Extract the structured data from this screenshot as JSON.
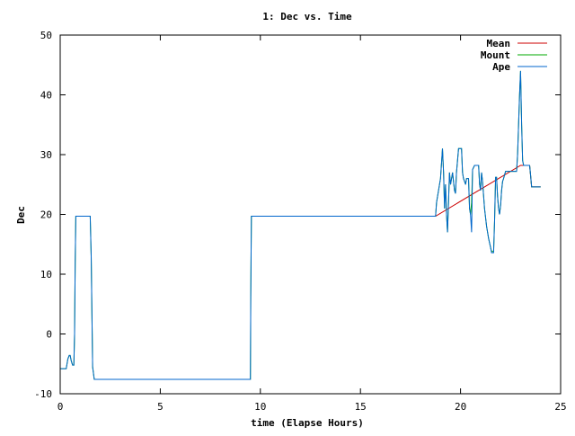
{
  "chart_data": {
    "type": "line",
    "title": "1: Dec vs. Time",
    "xlabel": "time (Elapse Hours)",
    "ylabel": "Dec",
    "xlim": [
      0,
      25
    ],
    "ylim": [
      -10,
      50
    ],
    "xticks": [
      0,
      5,
      10,
      15,
      20,
      25
    ],
    "yticks": [
      -10,
      0,
      10,
      20,
      30,
      40,
      50
    ],
    "grid": false,
    "legend_position": "top-right",
    "series": [
      {
        "name": "Mean",
        "color": "#cc0000",
        "points": [
          [
            10.4,
            19.7
          ],
          [
            18.75,
            19.7
          ],
          [
            23.0,
            28.2
          ],
          [
            23.45,
            28.2
          ],
          [
            23.55,
            24.6
          ],
          [
            24.0,
            24.6
          ]
        ]
      },
      {
        "name": "Mount",
        "color": "#00aa00",
        "points": [
          [
            0.0,
            -5.8
          ],
          [
            0.3,
            -5.8
          ],
          [
            0.38,
            -4.2
          ],
          [
            0.45,
            -3.6
          ],
          [
            0.5,
            -3.6
          ],
          [
            0.55,
            -4.5
          ],
          [
            0.62,
            -5.2
          ],
          [
            0.68,
            -5.2
          ],
          [
            0.72,
            0.0
          ],
          [
            0.75,
            12.0
          ],
          [
            0.78,
            19.7
          ],
          [
            1.5,
            19.7
          ],
          [
            1.55,
            13.0
          ],
          [
            1.62,
            -5.5
          ],
          [
            1.7,
            -7.6
          ],
          [
            9.5,
            -7.6
          ],
          [
            9.52,
            6.0
          ],
          [
            9.55,
            19.7
          ],
          [
            18.75,
            19.7
          ],
          [
            18.8,
            22.0
          ],
          [
            18.9,
            24.0
          ],
          [
            19.0,
            26.0
          ],
          [
            19.1,
            31.0
          ],
          [
            19.15,
            27.0
          ],
          [
            19.2,
            21.0
          ],
          [
            19.25,
            25.0
          ],
          [
            19.3,
            20.0
          ],
          [
            19.35,
            17.0
          ],
          [
            19.4,
            22.0
          ],
          [
            19.45,
            27.0
          ],
          [
            19.5,
            25.0
          ],
          [
            19.6,
            27.0
          ],
          [
            19.7,
            24.0
          ],
          [
            19.75,
            23.5
          ],
          [
            19.8,
            27.0
          ],
          [
            19.9,
            31.0
          ],
          [
            20.05,
            31.0
          ],
          [
            20.1,
            27.0
          ],
          [
            20.15,
            26.0
          ],
          [
            20.2,
            25.5
          ],
          [
            20.25,
            25.0
          ],
          [
            20.3,
            26.0
          ],
          [
            20.4,
            26.0
          ],
          [
            20.45,
            21.0
          ],
          [
            20.5,
            20.0
          ],
          [
            20.55,
            22.0
          ],
          [
            20.6,
            27.5
          ],
          [
            20.7,
            28.2
          ],
          [
            20.9,
            28.2
          ],
          [
            20.95,
            25.0
          ],
          [
            21.0,
            24.0
          ],
          [
            21.05,
            27.0
          ],
          [
            21.1,
            25.5
          ],
          [
            21.2,
            21.0
          ],
          [
            21.3,
            18.0
          ],
          [
            21.4,
            16.0
          ],
          [
            21.5,
            14.5
          ],
          [
            21.55,
            13.8
          ],
          [
            21.65,
            13.8
          ],
          [
            21.7,
            19.0
          ],
          [
            21.75,
            26.2
          ],
          [
            21.8,
            26.2
          ],
          [
            21.85,
            23.0
          ],
          [
            21.9,
            21.0
          ],
          [
            21.95,
            20.0
          ],
          [
            22.0,
            21.5
          ],
          [
            22.05,
            24.0
          ],
          [
            22.1,
            25.5
          ],
          [
            22.15,
            26.0
          ],
          [
            22.25,
            27.2
          ],
          [
            22.8,
            27.2
          ],
          [
            22.85,
            30.0
          ],
          [
            22.9,
            35.0
          ],
          [
            22.95,
            40.0
          ],
          [
            23.0,
            44.0
          ],
          [
            23.05,
            35.0
          ],
          [
            23.1,
            29.0
          ],
          [
            23.15,
            28.2
          ],
          [
            23.45,
            28.2
          ],
          [
            23.5,
            26.5
          ],
          [
            23.55,
            24.6
          ],
          [
            24.0,
            24.6
          ]
        ]
      },
      {
        "name": "Ape",
        "color": "#0066cc",
        "points": [
          [
            0.0,
            -5.8
          ],
          [
            0.3,
            -5.8
          ],
          [
            0.38,
            -4.2
          ],
          [
            0.45,
            -3.6
          ],
          [
            0.5,
            -3.6
          ],
          [
            0.55,
            -4.5
          ],
          [
            0.62,
            -5.2
          ],
          [
            0.68,
            -5.2
          ],
          [
            0.72,
            0.0
          ],
          [
            0.75,
            12.0
          ],
          [
            0.78,
            19.7
          ],
          [
            1.5,
            19.7
          ],
          [
            1.55,
            13.0
          ],
          [
            1.62,
            -5.5
          ],
          [
            1.7,
            -7.6
          ],
          [
            9.5,
            -7.6
          ],
          [
            9.52,
            6.0
          ],
          [
            9.55,
            19.7
          ],
          [
            18.75,
            19.7
          ],
          [
            18.8,
            22.0
          ],
          [
            18.9,
            24.0
          ],
          [
            19.0,
            26.0
          ],
          [
            19.1,
            31.0
          ],
          [
            19.15,
            27.0
          ],
          [
            19.2,
            21.0
          ],
          [
            19.25,
            25.0
          ],
          [
            19.3,
            20.0
          ],
          [
            19.35,
            17.0
          ],
          [
            19.4,
            22.0
          ],
          [
            19.45,
            27.0
          ],
          [
            19.5,
            25.0
          ],
          [
            19.6,
            27.0
          ],
          [
            19.7,
            24.0
          ],
          [
            19.75,
            23.5
          ],
          [
            19.8,
            27.0
          ],
          [
            19.9,
            31.0
          ],
          [
            20.05,
            31.0
          ],
          [
            20.1,
            27.0
          ],
          [
            20.15,
            26.0
          ],
          [
            20.2,
            25.5
          ],
          [
            20.25,
            25.0
          ],
          [
            20.3,
            26.0
          ],
          [
            20.4,
            26.0
          ],
          [
            20.45,
            21.0
          ],
          [
            20.5,
            20.0
          ],
          [
            20.55,
            17.0
          ],
          [
            20.6,
            27.5
          ],
          [
            20.7,
            28.2
          ],
          [
            20.9,
            28.2
          ],
          [
            20.95,
            25.0
          ],
          [
            21.0,
            24.0
          ],
          [
            21.05,
            27.0
          ],
          [
            21.1,
            25.5
          ],
          [
            21.2,
            21.0
          ],
          [
            21.3,
            18.0
          ],
          [
            21.4,
            16.0
          ],
          [
            21.5,
            14.5
          ],
          [
            21.55,
            13.6
          ],
          [
            21.65,
            13.6
          ],
          [
            21.7,
            19.0
          ],
          [
            21.75,
            26.2
          ],
          [
            21.8,
            26.2
          ],
          [
            21.85,
            23.0
          ],
          [
            21.9,
            21.0
          ],
          [
            21.95,
            20.0
          ],
          [
            22.0,
            21.5
          ],
          [
            22.05,
            24.0
          ],
          [
            22.1,
            25.5
          ],
          [
            22.15,
            26.0
          ],
          [
            22.25,
            27.2
          ],
          [
            22.8,
            27.2
          ],
          [
            22.85,
            30.0
          ],
          [
            22.9,
            35.0
          ],
          [
            22.95,
            40.0
          ],
          [
            23.0,
            44.0
          ],
          [
            23.05,
            35.0
          ],
          [
            23.1,
            29.0
          ],
          [
            23.15,
            28.2
          ],
          [
            23.45,
            28.2
          ],
          [
            23.5,
            26.5
          ],
          [
            23.55,
            24.6
          ],
          [
            24.0,
            24.6
          ]
        ]
      }
    ]
  }
}
